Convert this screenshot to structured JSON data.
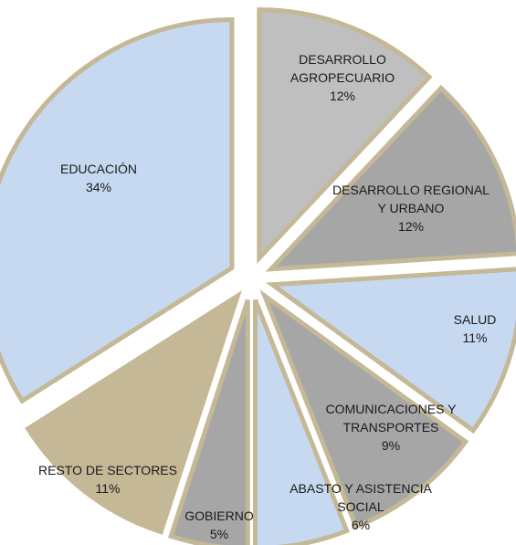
{
  "chart_data": {
    "type": "pie",
    "categories": [
      "DESARROLLO AGROPECUARIO",
      "DESARROLLO REGIONAL Y URBANO",
      "SALUD",
      "COMUNICACIONES Y TRANSPORTES",
      "ABASTO Y ASISTENCIA SOCIAL",
      "GOBIERNO",
      "RESTO DE SECTORES",
      "EDUCACIÓN"
    ],
    "values": [
      12,
      12,
      11,
      9,
      6,
      5,
      11,
      34
    ],
    "value_labels": [
      "12%",
      "12%",
      "11%",
      "9%",
      "6%",
      "5%",
      "11%",
      "34%"
    ],
    "colors": [
      "#bfbfbf",
      "#a6a6a6",
      "#c6d9f1",
      "#a6a6a6",
      "#c6d9f1",
      "#a6a6a6",
      "#c4b896",
      "#c6d9f1"
    ],
    "edge_color": "#c4b896"
  }
}
